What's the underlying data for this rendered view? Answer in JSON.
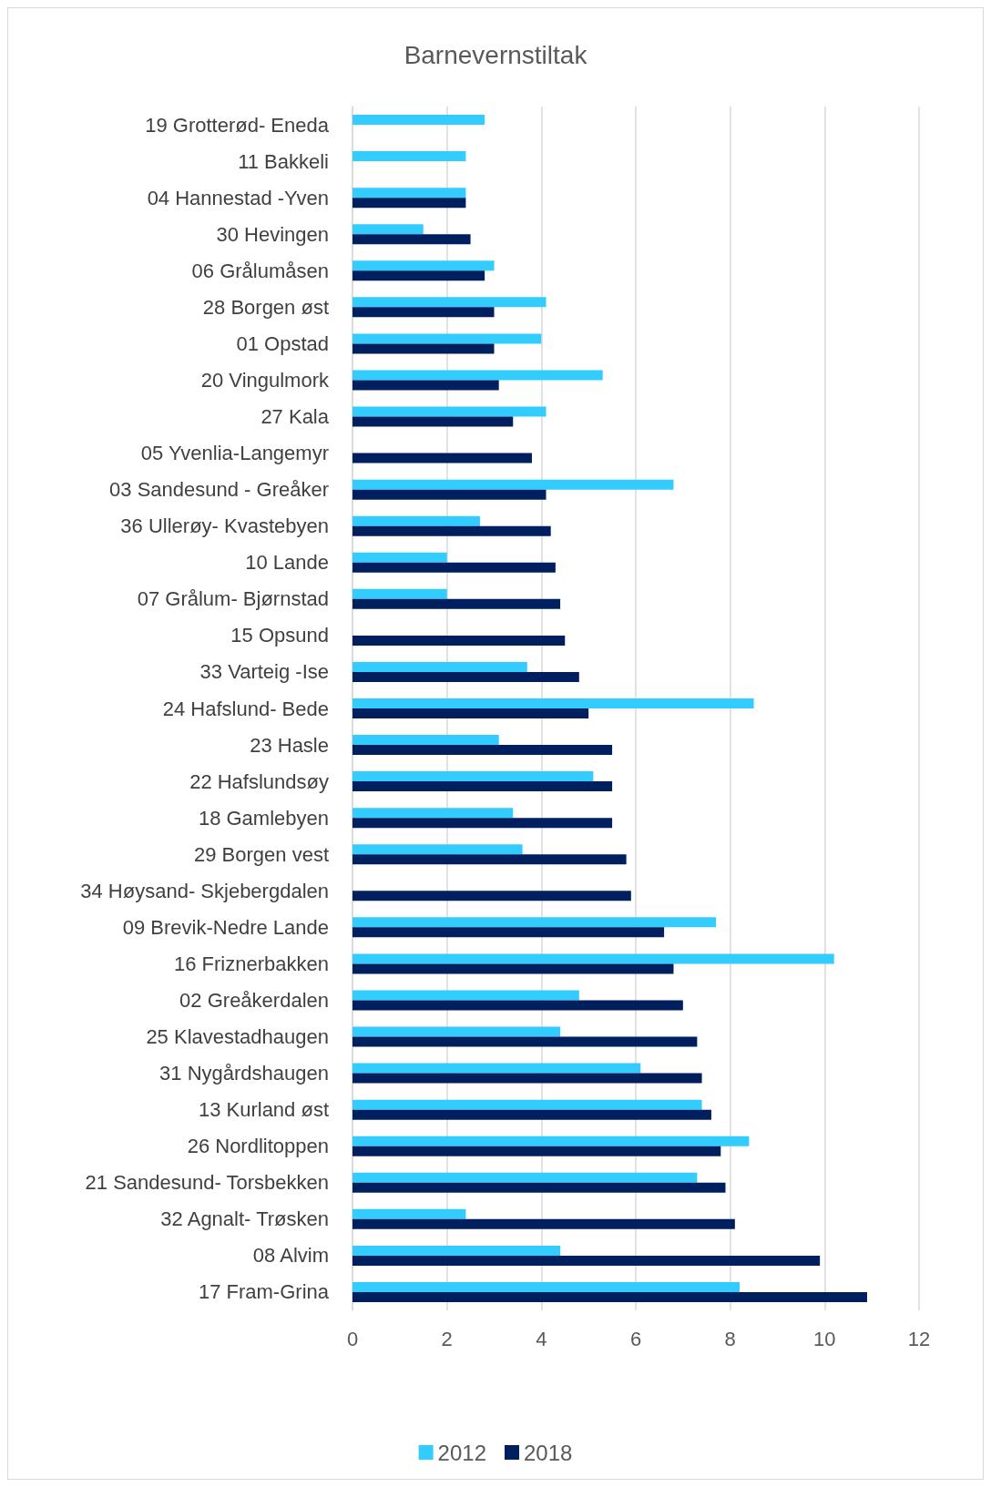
{
  "chart_data": {
    "type": "bar",
    "orientation": "horizontal",
    "title": "Barnevernstiltak",
    "categories": [
      "19 Grotterød- Eneda",
      "11 Bakkeli",
      "04 Hannestad -Yven",
      "30 Hevingen",
      "06 Grålumåsen",
      "28 Borgen øst",
      "01 Opstad",
      "20 Vingulmork",
      "27 Kala",
      "05 Yvenlia-Langemyr",
      "03 Sandesund - Greåker",
      "36 Ullerøy- Kvastebyen",
      "10 Lande",
      "07 Grålum- Bjørnstad",
      "15 Opsund",
      "33 Varteig -Ise",
      "24 Hafslund- Bede",
      "23 Hasle",
      "22 Hafslundsøy",
      "18 Gamlebyen",
      "29 Borgen vest",
      "34 Høysand- Skjebergdalen",
      "09 Brevik-Nedre Lande",
      "16 Friznerbakken",
      "02 Greåkerdalen",
      "25 Klavestadhaugen",
      "31 Nygårdshaugen",
      "13 Kurland øst",
      "26 Nordlitoppen",
      "21 Sandesund- Torsbekken",
      "32 Agnalt- Trøsken",
      "08 Alvim",
      "17 Fram-Grina"
    ],
    "series": [
      {
        "name": "2012",
        "color": "#33ccff",
        "values": [
          2.8,
          2.4,
          2.4,
          1.5,
          3.0,
          4.1,
          4.0,
          5.3,
          4.1,
          null,
          6.8,
          2.7,
          2.0,
          2.0,
          null,
          3.7,
          8.5,
          3.1,
          5.1,
          3.4,
          3.6,
          null,
          7.7,
          10.2,
          4.8,
          4.4,
          6.1,
          7.4,
          8.4,
          7.3,
          2.4,
          4.4,
          8.2
        ]
      },
      {
        "name": "2018",
        "color": "#001f5f",
        "values": [
          0,
          null,
          2.4,
          2.5,
          2.8,
          3.0,
          3.0,
          3.1,
          3.4,
          3.8,
          4.1,
          4.2,
          4.3,
          4.4,
          4.5,
          4.8,
          5.0,
          5.5,
          5.5,
          5.5,
          5.8,
          5.9,
          6.6,
          6.8,
          7.0,
          7.3,
          7.4,
          7.6,
          7.8,
          7.9,
          8.1,
          9.9,
          10.9
        ]
      }
    ],
    "xlim": [
      0,
      12
    ],
    "xticks": [
      0,
      2,
      4,
      6,
      8,
      10,
      12
    ],
    "grid": "x",
    "legend": "bottom"
  }
}
